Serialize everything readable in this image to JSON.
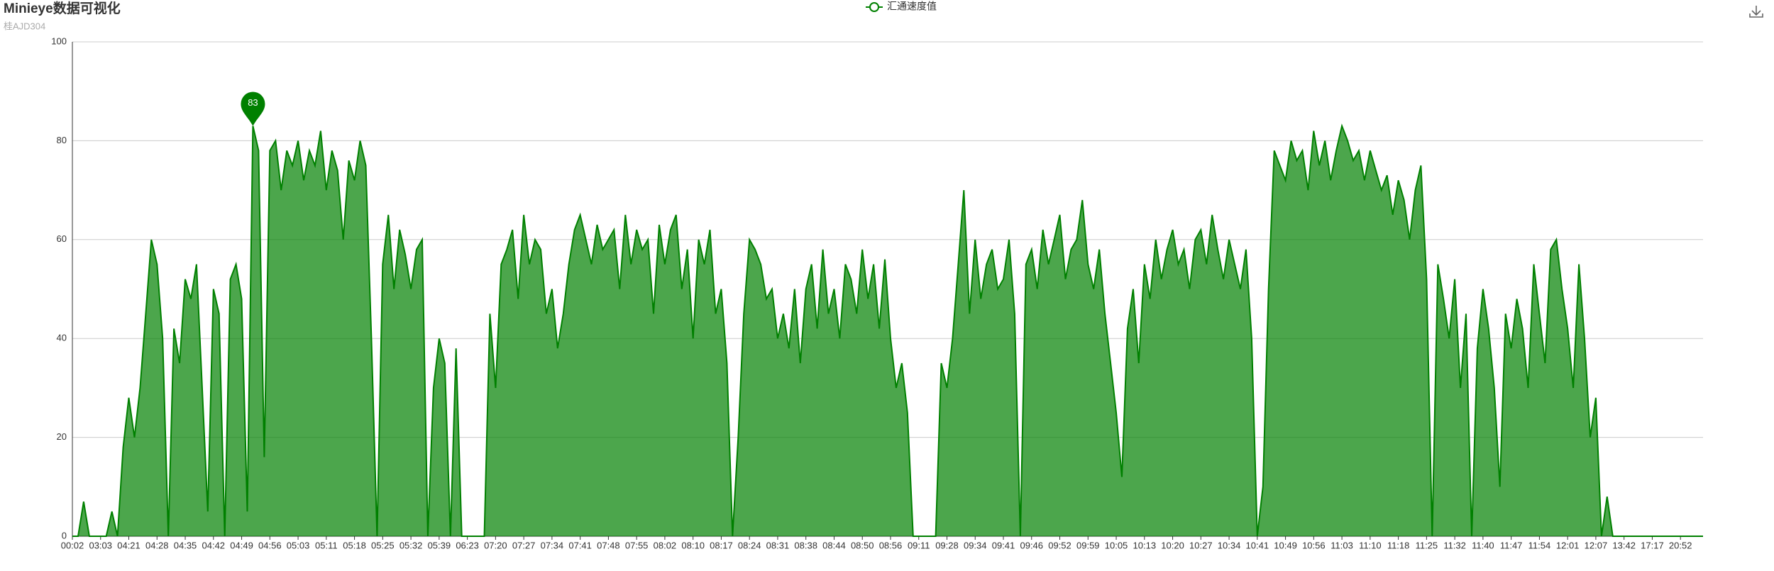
{
  "chart_data": {
    "type": "line",
    "area": true,
    "title": "Minieye数据可视化",
    "subtitle": "桂AJD304",
    "categories": [
      "00:02",
      null,
      null,
      null,
      null,
      "03:03",
      null,
      null,
      null,
      null,
      "04:21",
      null,
      null,
      null,
      null,
      "04:28",
      null,
      null,
      null,
      null,
      "04:35",
      null,
      null,
      null,
      null,
      "04:42",
      null,
      null,
      null,
      null,
      "04:49",
      null,
      null,
      null,
      null,
      "04:56",
      null,
      null,
      null,
      null,
      "05:03",
      null,
      null,
      null,
      null,
      "05:11",
      null,
      null,
      null,
      null,
      "05:18",
      null,
      null,
      null,
      null,
      "05:25",
      null,
      null,
      null,
      null,
      "05:32",
      null,
      null,
      null,
      null,
      "05:39",
      null,
      null,
      null,
      null,
      "06:23",
      null,
      null,
      null,
      null,
      "07:20",
      null,
      null,
      null,
      null,
      "07:27",
      null,
      null,
      null,
      null,
      "07:34",
      null,
      null,
      null,
      null,
      "07:41",
      null,
      null,
      null,
      null,
      "07:48",
      null,
      null,
      null,
      null,
      "07:55",
      null,
      null,
      null,
      null,
      "08:02",
      null,
      null,
      null,
      null,
      "08:10",
      null,
      null,
      null,
      null,
      "08:17",
      null,
      null,
      null,
      null,
      "08:24",
      null,
      null,
      null,
      null,
      "08:31",
      null,
      null,
      null,
      null,
      "08:38",
      null,
      null,
      null,
      null,
      "08:44",
      null,
      null,
      null,
      null,
      "08:50",
      null,
      null,
      null,
      null,
      "08:56",
      null,
      null,
      null,
      null,
      "09:11",
      null,
      null,
      null,
      null,
      "09:28",
      null,
      null,
      null,
      null,
      "09:34",
      null,
      null,
      null,
      null,
      "09:41",
      null,
      null,
      null,
      null,
      "09:46",
      null,
      null,
      null,
      null,
      "09:52",
      null,
      null,
      null,
      null,
      "09:59",
      null,
      null,
      null,
      null,
      "10:05",
      null,
      null,
      null,
      null,
      "10:13",
      null,
      null,
      null,
      null,
      "10:20",
      null,
      null,
      null,
      null,
      "10:27",
      null,
      null,
      null,
      null,
      "10:34",
      null,
      null,
      null,
      null,
      "10:41",
      null,
      null,
      null,
      null,
      "10:49",
      null,
      null,
      null,
      null,
      "10:56",
      null,
      null,
      null,
      null,
      "11:03",
      null,
      null,
      null,
      null,
      "11:10",
      null,
      null,
      null,
      null,
      "11:18",
      null,
      null,
      null,
      null,
      "11:25",
      null,
      null,
      null,
      null,
      "11:32",
      null,
      null,
      null,
      null,
      "11:40",
      null,
      null,
      null,
      null,
      "11:47",
      null,
      null,
      null,
      null,
      "11:54",
      null,
      null,
      null,
      null,
      "12:01",
      null,
      null,
      null,
      null,
      "12:07",
      null,
      null,
      null,
      null,
      "13:42",
      null,
      null,
      null,
      null,
      "17:17",
      null,
      null,
      null,
      null,
      "20:52",
      null,
      null,
      null,
      null
    ],
    "series": [
      {
        "name": "汇通速度值",
        "color": "#008000",
        "values": [
          0,
          0,
          7,
          0,
          0,
          0,
          0,
          5,
          0,
          18,
          28,
          20,
          30,
          45,
          60,
          55,
          40,
          0,
          42,
          35,
          52,
          48,
          55,
          30,
          5,
          50,
          45,
          0,
          52,
          55,
          48,
          5,
          83,
          78,
          16,
          78,
          80,
          70,
          78,
          75,
          80,
          72,
          78,
          75,
          82,
          70,
          78,
          74,
          60,
          76,
          72,
          80,
          75,
          40,
          0,
          55,
          65,
          50,
          62,
          57,
          50,
          58,
          60,
          0,
          30,
          40,
          35,
          0,
          38,
          0,
          0,
          0,
          0,
          0,
          45,
          30,
          55,
          58,
          62,
          48,
          65,
          55,
          60,
          58,
          45,
          50,
          38,
          45,
          55,
          62,
          65,
          60,
          55,
          63,
          58,
          60,
          62,
          50,
          65,
          55,
          62,
          58,
          60,
          45,
          63,
          55,
          62,
          65,
          50,
          58,
          40,
          60,
          55,
          62,
          45,
          50,
          35,
          0,
          20,
          45,
          60,
          58,
          55,
          48,
          50,
          40,
          45,
          38,
          50,
          35,
          50,
          55,
          42,
          58,
          45,
          50,
          40,
          55,
          52,
          45,
          58,
          48,
          55,
          42,
          56,
          40,
          30,
          35,
          25,
          0,
          0,
          0,
          0,
          0,
          35,
          30,
          40,
          55,
          70,
          45,
          60,
          48,
          55,
          58,
          50,
          52,
          60,
          45,
          0,
          55,
          58,
          50,
          62,
          55,
          60,
          65,
          52,
          58,
          60,
          68,
          55,
          50,
          58,
          45,
          35,
          25,
          12,
          42,
          50,
          35,
          55,
          48,
          60,
          52,
          58,
          62,
          55,
          58,
          50,
          60,
          62,
          55,
          65,
          58,
          52,
          60,
          55,
          50,
          58,
          40,
          0,
          10,
          50,
          78,
          75,
          72,
          80,
          76,
          78,
          70,
          82,
          75,
          80,
          72,
          78,
          83,
          80,
          76,
          78,
          72,
          78,
          74,
          70,
          73,
          65,
          72,
          68,
          60,
          70,
          75,
          52,
          0,
          55,
          48,
          40,
          52,
          30,
          45,
          0,
          38,
          50,
          42,
          30,
          10,
          45,
          38,
          48,
          42,
          30,
          55,
          45,
          35,
          58,
          60,
          50,
          42,
          30,
          55,
          40,
          20,
          28,
          0,
          8,
          0,
          0,
          0,
          0,
          0,
          0,
          0,
          0,
          0,
          0,
          0,
          0,
          0,
          0,
          0,
          0,
          0
        ]
      }
    ],
    "ylim": [
      0,
      100
    ],
    "yticks": [
      0,
      20,
      40,
      60,
      80,
      100
    ],
    "grid": true,
    "legend": "top"
  }
}
